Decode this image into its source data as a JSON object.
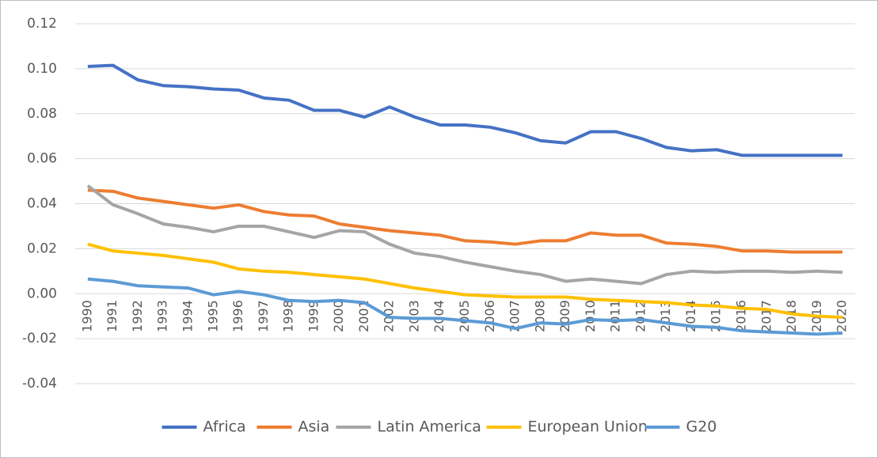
{
  "chart_data": {
    "type": "line",
    "categories": [
      "1990",
      "1991",
      "1992",
      "1993",
      "1994",
      "1995",
      "1996",
      "1997",
      "1998",
      "1999",
      "2000",
      "2001",
      "2002",
      "2003",
      "2004",
      "2005",
      "2006",
      "2007",
      "2008",
      "2009",
      "2010",
      "2011",
      "2012",
      "2013",
      "2014",
      "2015",
      "2016",
      "2017",
      "2018",
      "2019",
      "2020"
    ],
    "series": [
      {
        "name": "Africa",
        "color": "#4472c4",
        "values": [
          0.101,
          0.1015,
          0.095,
          0.0925,
          0.092,
          0.091,
          0.0905,
          0.087,
          0.086,
          0.0815,
          0.0815,
          0.0785,
          0.083,
          0.0785,
          0.075,
          0.075,
          0.074,
          0.0715,
          0.068,
          0.067,
          0.072,
          0.072,
          0.069,
          0.065,
          0.0635,
          0.064,
          0.0615,
          0.0615,
          0.0615,
          0.0615,
          0.0615
        ]
      },
      {
        "name": "Asia",
        "color": "#ed7d31",
        "values": [
          0.046,
          0.0455,
          0.0425,
          0.041,
          0.0395,
          0.038,
          0.0395,
          0.0365,
          0.035,
          0.0345,
          0.031,
          0.0295,
          0.028,
          0.027,
          0.026,
          0.0235,
          0.023,
          0.022,
          0.0235,
          0.0235,
          0.027,
          0.026,
          0.026,
          0.0225,
          0.022,
          0.021,
          0.019,
          0.019,
          0.0185,
          0.0185,
          0.0185
        ]
      },
      {
        "name": "Latin America",
        "color": "#a5a5a5",
        "values": [
          0.048,
          0.0395,
          0.0355,
          0.031,
          0.0295,
          0.0275,
          0.03,
          0.03,
          0.0275,
          0.025,
          0.028,
          0.0275,
          0.022,
          0.018,
          0.0165,
          0.014,
          0.012,
          0.01,
          0.0085,
          0.0055,
          0.0065,
          0.0055,
          0.0045,
          0.0085,
          0.01,
          0.0095,
          0.01,
          0.01,
          0.0095,
          0.01,
          0.0095
        ]
      },
      {
        "name": "European Union",
        "color": "#ffc000",
        "values": [
          0.022,
          0.019,
          0.018,
          0.017,
          0.0155,
          0.014,
          0.011,
          0.01,
          0.0095,
          0.0085,
          0.0075,
          0.0065,
          0.0045,
          0.0025,
          0.001,
          -0.0005,
          -0.001,
          -0.0015,
          -0.0015,
          -0.0015,
          -0.0025,
          -0.003,
          -0.0035,
          -0.004,
          -0.005,
          -0.0055,
          -0.0065,
          -0.007,
          -0.009,
          -0.01,
          -0.0105
        ]
      },
      {
        "name": "G20",
        "color": "#5b9bd5",
        "values": [
          0.0065,
          0.0055,
          0.0035,
          0.003,
          0.0025,
          -0.0005,
          0.001,
          -0.0005,
          -0.003,
          -0.0035,
          -0.003,
          -0.004,
          -0.0105,
          -0.011,
          -0.011,
          -0.012,
          -0.013,
          -0.0155,
          -0.013,
          -0.0135,
          -0.0115,
          -0.012,
          -0.0115,
          -0.013,
          -0.0145,
          -0.015,
          -0.0165,
          -0.017,
          -0.0175,
          -0.018,
          -0.0175
        ]
      }
    ],
    "ylim": [
      -0.04,
      0.12
    ],
    "yticks": [
      -0.04,
      -0.02,
      {
        "value": 0,
        "label": "0.00"
      },
      0.02,
      0.04,
      0.06,
      0.08,
      {
        "value": 0.1,
        "label": "0.10"
      },
      0.12
    ],
    "grid": true,
    "legend": "bottom"
  }
}
